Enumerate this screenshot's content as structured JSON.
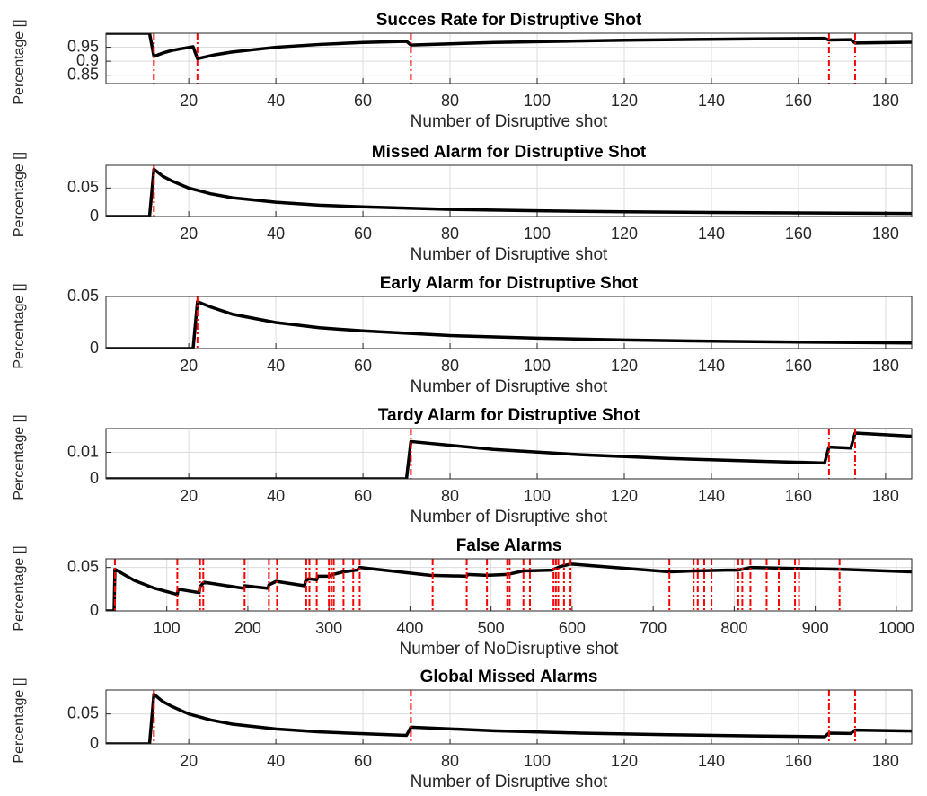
{
  "chart_data": [
    {
      "type": "line",
      "title": "Succes Rate for Distruptive Shot",
      "xlabel": "Number of Disruptive shot",
      "ylabel": "Percentage []",
      "x": [
        1,
        11,
        12,
        14,
        16,
        18,
        21,
        22,
        26,
        30,
        40,
        50,
        60,
        70,
        71,
        90,
        120,
        150,
        166,
        167,
        172,
        173,
        186
      ],
      "values": [
        1,
        1,
        0.917,
        0.929,
        0.938,
        0.944,
        0.952,
        0.909,
        0.923,
        0.933,
        0.95,
        0.96,
        0.967,
        0.971,
        0.958,
        0.967,
        0.975,
        0.98,
        0.982,
        0.976,
        0.977,
        0.965,
        0.968
      ],
      "color": "#000000",
      "xlim": [
        1,
        186
      ],
      "ylim": [
        0.82,
        1.0
      ],
      "xticks": [
        20,
        40,
        60,
        80,
        100,
        120,
        140,
        160,
        180
      ],
      "yticks": [
        0.85,
        0.9,
        0.95
      ],
      "grid": true,
      "events": {
        "x": [
          12,
          22,
          71,
          167,
          173
        ],
        "color": "#ff0000"
      }
    },
    {
      "type": "line",
      "title": "Missed Alarm for Distruptive Shot",
      "xlabel": "Number of Disruptive shot",
      "ylabel": "Percentage []",
      "x": [
        1,
        11,
        12,
        14,
        16,
        20,
        25,
        30,
        40,
        50,
        60,
        80,
        100,
        120,
        140,
        160,
        186
      ],
      "values": [
        0,
        0,
        0.083,
        0.071,
        0.063,
        0.05,
        0.04,
        0.033,
        0.025,
        0.02,
        0.017,
        0.0125,
        0.01,
        0.0083,
        0.0071,
        0.0063,
        0.0054
      ],
      "color": "#000000",
      "xlim": [
        1,
        186
      ],
      "ylim": [
        0,
        0.09
      ],
      "xticks": [
        20,
        40,
        60,
        80,
        100,
        120,
        140,
        160,
        180
      ],
      "yticks": [
        0,
        0.05
      ],
      "grid": true,
      "events": {
        "x": [
          12
        ],
        "color": "#ff0000"
      }
    },
    {
      "type": "line",
      "title": "Early Alarm for Distruptive Shot",
      "xlabel": "Number of Disruptive shot",
      "ylabel": "Percentage []",
      "x": [
        1,
        21,
        22,
        25,
        30,
        40,
        50,
        60,
        80,
        100,
        120,
        140,
        160,
        186
      ],
      "values": [
        0,
        0,
        0.045,
        0.04,
        0.033,
        0.025,
        0.02,
        0.017,
        0.0125,
        0.01,
        0.0083,
        0.0071,
        0.0063,
        0.0054
      ],
      "color": "#000000",
      "xlim": [
        1,
        186
      ],
      "ylim": [
        0,
        0.05
      ],
      "xticks": [
        20,
        40,
        60,
        80,
        100,
        120,
        140,
        160,
        180
      ],
      "yticks": [
        0,
        0.05
      ],
      "grid": true,
      "events": {
        "x": [
          22
        ],
        "color": "#ff0000"
      }
    },
    {
      "type": "line",
      "title": "Tardy Alarm for Distruptive Shot",
      "xlabel": "Number of Disruptive shot",
      "ylabel": "Percentage []",
      "x": [
        1,
        70,
        71,
        90,
        110,
        130,
        150,
        166,
        167,
        172,
        173,
        186
      ],
      "values": [
        0,
        0,
        0.0141,
        0.0111,
        0.0091,
        0.0077,
        0.0067,
        0.006,
        0.012,
        0.0116,
        0.0173,
        0.0161
      ],
      "color": "#000000",
      "xlim": [
        1,
        186
      ],
      "ylim": [
        0,
        0.019
      ],
      "xticks": [
        20,
        40,
        60,
        80,
        100,
        120,
        140,
        160,
        180
      ],
      "yticks": [
        0,
        0.01
      ],
      "grid": true,
      "events": {
        "x": [
          71,
          167,
          173
        ],
        "color": "#ff0000"
      }
    },
    {
      "type": "line",
      "title": "False Alarms",
      "xlabel": "Number of NoDisruptive shot",
      "ylabel": "Percentage []",
      "x": [
        25,
        35,
        36,
        60,
        85,
        113,
        114,
        140,
        141,
        146,
        195,
        196,
        225,
        226,
        235,
        270,
        271,
        275,
        285,
        286,
        300,
        305,
        318,
        335,
        338,
        425,
        470,
        471,
        495,
        520,
        540,
        575,
        585,
        598,
        720,
        750,
        790,
        805,
        820,
        870,
        930,
        1019
      ],
      "values": [
        0,
        0,
        0.048,
        0.035,
        0.026,
        0.019,
        0.025,
        0.021,
        0.028,
        0.033,
        0.026,
        0.029,
        0.026,
        0.03,
        0.034,
        0.029,
        0.034,
        0.037,
        0.036,
        0.04,
        0.04,
        0.042,
        0.045,
        0.047,
        0.05,
        0.041,
        0.04,
        0.042,
        0.041,
        0.042,
        0.046,
        0.047,
        0.051,
        0.054,
        0.045,
        0.046,
        0.047,
        0.047,
        0.05,
        0.049,
        0.048,
        0.045
      ],
      "color": "#000000",
      "xlim": [
        25,
        1019
      ],
      "ylim": [
        0,
        0.06
      ],
      "xticks": [
        100,
        200,
        300,
        400,
        500,
        600,
        700,
        800,
        900,
        1000
      ],
      "yticks": [
        0,
        0.05
      ],
      "grid": true,
      "events": {
        "x": [
          36,
          113,
          141,
          145,
          196,
          226,
          236,
          272,
          276,
          285,
          300,
          303,
          306,
          318,
          330,
          338,
          428,
          470,
          495,
          520,
          523,
          540,
          548,
          577,
          580,
          583,
          590,
          598,
          720,
          750,
          755,
          763,
          772,
          805,
          810,
          820,
          840,
          855,
          875,
          880,
          930
        ],
        "color": "#ff0000"
      }
    },
    {
      "type": "line",
      "title": "Global Missed Alarms",
      "xlabel": "Number of Disruptive shot",
      "ylabel": "Percentage []",
      "x": [
        1,
        11,
        12,
        14,
        16,
        20,
        25,
        30,
        40,
        50,
        60,
        70,
        71,
        90,
        110,
        130,
        150,
        166,
        167,
        172,
        173,
        186
      ],
      "values": [
        0,
        0,
        0.083,
        0.071,
        0.063,
        0.05,
        0.04,
        0.033,
        0.025,
        0.02,
        0.017,
        0.0143,
        0.028,
        0.022,
        0.018,
        0.0154,
        0.0133,
        0.012,
        0.018,
        0.0174,
        0.023,
        0.0215
      ],
      "color": "#000000",
      "xlim": [
        1,
        186
      ],
      "ylim": [
        0,
        0.09
      ],
      "xticks": [
        20,
        40,
        60,
        80,
        100,
        120,
        140,
        160,
        180
      ],
      "yticks": [
        0,
        0.05
      ],
      "grid": true,
      "events": {
        "x": [
          12,
          71,
          167,
          173
        ],
        "color": "#ff0000"
      }
    }
  ]
}
